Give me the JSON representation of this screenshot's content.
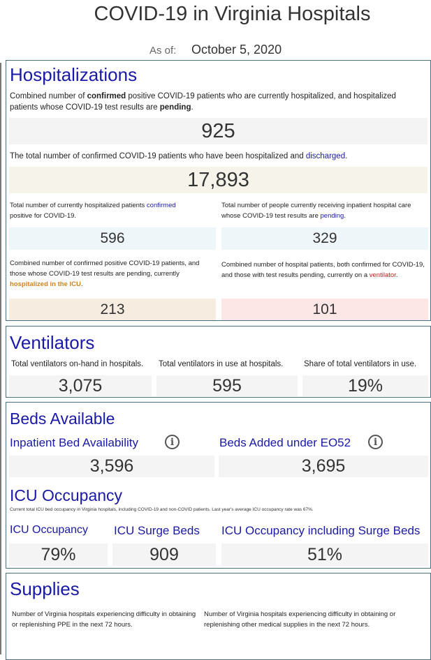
{
  "page_title": "COVID-19 in Virginia Hospitals",
  "as_of": {
    "label": "As of:",
    "date": "October 5, 2020"
  },
  "hospitalizations": {
    "title": "Hospitalizations",
    "combined": {
      "desc_a": "Combined number of ",
      "desc_b": "confirmed",
      "desc_c": " positive COVID-19 patients who are currently hospitalized, and hospitalized patients whose COVID-19 test results are ",
      "desc_d": "pending",
      "desc_e": ".",
      "value": "925"
    },
    "discharged": {
      "desc_a": "The total number of confirmed COVID-19 patients who have been hospitalized and ",
      "desc_b": "discharged",
      "desc_c": ".",
      "value": "17,893"
    },
    "confirmed": {
      "desc_a": "Total number of currently hospitalized patients ",
      "desc_b": "confirmed",
      "desc_c": " positive for COVID-19.",
      "value": "596"
    },
    "pending": {
      "desc_a": "Total number of people currently receiving inpatient hospital care whose COVID-19 test results are ",
      "desc_b": "pending",
      "desc_c": ".",
      "value": "329"
    },
    "icu": {
      "desc_a": "Combined number of confirmed positive COVID-19 patients, and those whose COVID-19 test results are pending, currently ",
      "desc_b": "hospitalized in the ICU",
      "desc_c": ".",
      "value": "213"
    },
    "ventilator": {
      "desc_a": "Combined number of hospital patients, both confirmed for COVID-19, and those with test results pending, currently on a ",
      "desc_b": "ventilator",
      "desc_c": ".",
      "value": "101"
    }
  },
  "ventilators": {
    "title": "Ventilators",
    "on_hand": {
      "label": "Total ventilators on-hand in hospitals.",
      "value": "3,075"
    },
    "in_use": {
      "label": "Total ventilators in use at hospitals.",
      "value": "595"
    },
    "share": {
      "label": "Share of total ventilators in use.",
      "value": "19%"
    }
  },
  "beds": {
    "title": "Beds Available",
    "inpatient": {
      "label": "Inpatient Bed Availability",
      "value": "3,596",
      "icon": "info-icon"
    },
    "eo52": {
      "label": "Beds Added under EO52",
      "value": "3,695",
      "icon": "info-icon"
    },
    "icu_title": "ICU Occupancy",
    "icu_desc": "Current total ICU bed occupancy in Virginia hospitals, including COVID-19 and non-COVID patients. Last year's average ICU occupancy rate was 67%.",
    "icu_occupancy": {
      "label": "ICU Occupancy",
      "value": "79%"
    },
    "icu_surge": {
      "label": "ICU Surge Beds",
      "value": "909"
    },
    "icu_incl_surge": {
      "label": "ICU Occupancy including Surge Beds",
      "value": "51%"
    }
  },
  "supplies": {
    "title": "Supplies",
    "ppe_desc": "Number of Virginia hospitals experiencing difficulty in obtaining or replenishing PPE in the next 72 hours.",
    "other_desc": "Number of Virginia hospitals experiencing difficulty in obtaining or replenishing other medical supplies in the next 72 hours."
  },
  "colors": {
    "heading": "#1a1aa8",
    "border": "#4a6f85",
    "orange": "#d4821e",
    "red": "#c0231b"
  }
}
